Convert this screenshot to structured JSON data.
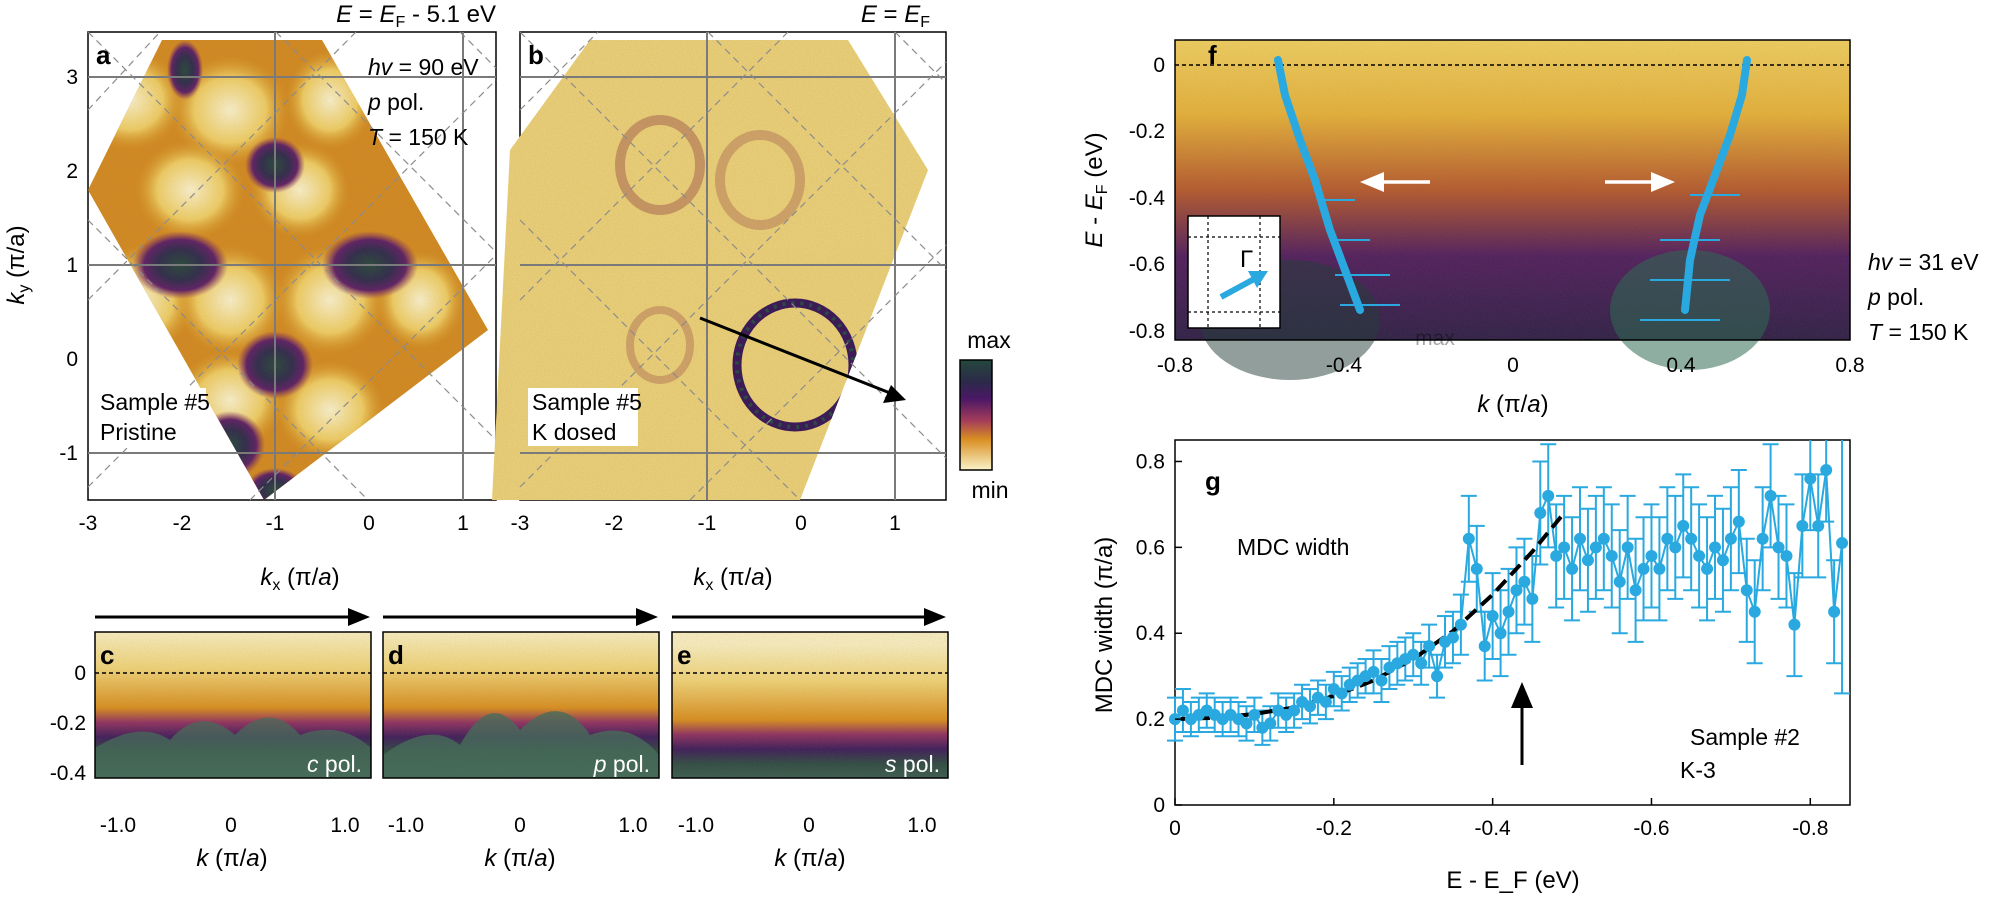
{
  "figure": {
    "panel_a": {
      "letter": "a",
      "top_label": "E = E_F - 5.1 eV",
      "top_label_parts": {
        "e": "E",
        "eq": " = ",
        "ef": "E",
        "ef_sub": "F",
        "rest": " - 5.1 eV"
      },
      "hv": "hv = 90 eV",
      "hv_parts": {
        "sym": "hv",
        "rest": " = 90 eV"
      },
      "pol": "p pol.",
      "pol_parts": {
        "sym": "p",
        "rest": " pol."
      },
      "temp": "T = 150 K",
      "temp_parts": {
        "sym": "T",
        "rest": " = 150 K"
      },
      "sample": "Sample #5",
      "state": "Pristine",
      "ylabel_parts": {
        "k": "k",
        "sub": "y",
        "rest": " (π/a)"
      },
      "xlabel_parts": {
        "k": "k",
        "sub": "x",
        "rest": " (π/",
        "a": "a",
        "end": ")"
      },
      "xticks": [
        "-3",
        "-2",
        "-1",
        "0",
        "1"
      ],
      "yticks": [
        "3",
        "2",
        "1",
        "0",
        "-1"
      ]
    },
    "panel_b": {
      "letter": "b",
      "top_label_parts": {
        "e": "E",
        "eq": " = ",
        "ef": "E",
        "ef_sub": "F"
      },
      "sample": "Sample #5",
      "state": "K dosed",
      "xlabel_parts": {
        "k": "k",
        "sub": "x",
        "rest": " (π/",
        "a": "a",
        "end": ")"
      },
      "xticks": [
        "-3",
        "-2",
        "-1",
        "0",
        "1"
      ]
    },
    "colorbar": {
      "max_label": "max",
      "min_label": "min"
    },
    "panels_cde": {
      "c": {
        "letter": "c",
        "pol_parts": {
          "sym": "c",
          "rest": " pol."
        }
      },
      "d": {
        "letter": "d",
        "pol_parts": {
          "sym": "p",
          "rest": " pol."
        }
      },
      "e": {
        "letter": "e",
        "pol_parts": {
          "sym": "s",
          "rest": " pol."
        }
      },
      "yticks": [
        "0",
        "-0.2",
        "-0.4"
      ],
      "xticks": [
        "-1.0",
        "0",
        "1.0"
      ],
      "xlabel_parts": {
        "k": "k",
        "rest": " (π/",
        "a": "a",
        "end": ")"
      }
    },
    "panel_f": {
      "letter": "f",
      "ylabel_parts": {
        "e": "E",
        "dash": " - ",
        "ef": "E",
        "ef_sub": "F",
        "rest": " (eV)"
      },
      "xlabel_parts": {
        "k": "k",
        "rest": " (π/",
        "a": "a",
        "end": ")"
      },
      "yticks": [
        "0",
        "-0.2",
        "-0.4",
        "-0.6",
        "-0.8"
      ],
      "xticks": [
        "-0.8",
        "-0.4",
        "0",
        "0.4",
        "0.8"
      ],
      "inset_label": "Γ",
      "faint_text": "max",
      "hv_parts": {
        "sym": "hv",
        "rest": " = 31 eV"
      },
      "pol_parts": {
        "sym": "p",
        "rest": " pol."
      },
      "temp_parts": {
        "sym": "T",
        "rest": " = 150 K"
      }
    },
    "panel_g": {
      "letter": "g",
      "annotation": "MDC width",
      "sample": "Sample #2",
      "dose": "K-3"
    },
    "colors": {
      "data_blue": "#29a9e0",
      "map_dark": "#24473c",
      "map_purple": "#4a1766",
      "map_orange": "#c9781a",
      "map_yellow": "#f7e9a4"
    }
  },
  "chart_data": {
    "type": "scatter",
    "title": "",
    "xlabel": "E - E_F (eV)",
    "ylabel": "MDC width (π/a)",
    "xlim": [
      0,
      -0.85
    ],
    "ylim": [
      0,
      0.85
    ],
    "xticks": [
      "0",
      "-0.2",
      "-0.4",
      "-0.6",
      "-0.8"
    ],
    "yticks": [
      "0",
      "0.2",
      "0.4",
      "0.6",
      "0.8"
    ],
    "grid": false,
    "series": [
      {
        "name": "MDC width",
        "x": [
          0,
          -0.01,
          -0.02,
          -0.03,
          -0.04,
          -0.05,
          -0.06,
          -0.07,
          -0.08,
          -0.09,
          -0.1,
          -0.11,
          -0.12,
          -0.13,
          -0.14,
          -0.15,
          -0.16,
          -0.17,
          -0.18,
          -0.19,
          -0.2,
          -0.21,
          -0.22,
          -0.23,
          -0.24,
          -0.25,
          -0.26,
          -0.27,
          -0.28,
          -0.29,
          -0.3,
          -0.31,
          -0.32,
          -0.33,
          -0.34,
          -0.35,
          -0.36,
          -0.37,
          -0.38,
          -0.39,
          -0.4,
          -0.41,
          -0.42,
          -0.43,
          -0.44,
          -0.45,
          -0.46,
          -0.47,
          -0.48,
          -0.49,
          -0.5,
          -0.51,
          -0.52,
          -0.53,
          -0.54,
          -0.55,
          -0.56,
          -0.57,
          -0.58,
          -0.59,
          -0.6,
          -0.61,
          -0.62,
          -0.63,
          -0.64,
          -0.65,
          -0.66,
          -0.67,
          -0.68,
          -0.69,
          -0.7,
          -0.71,
          -0.72,
          -0.73,
          -0.74,
          -0.75,
          -0.76,
          -0.77,
          -0.78,
          -0.79,
          -0.8,
          -0.81,
          -0.82,
          -0.83,
          -0.84
        ],
        "y": [
          0.2,
          0.22,
          0.2,
          0.21,
          0.22,
          0.21,
          0.2,
          0.21,
          0.2,
          0.19,
          0.21,
          0.18,
          0.19,
          0.22,
          0.21,
          0.22,
          0.24,
          0.23,
          0.25,
          0.24,
          0.27,
          0.26,
          0.28,
          0.29,
          0.3,
          0.31,
          0.29,
          0.32,
          0.33,
          0.34,
          0.35,
          0.33,
          0.37,
          0.3,
          0.38,
          0.39,
          0.42,
          0.62,
          0.55,
          0.37,
          0.44,
          0.4,
          0.45,
          0.5,
          0.52,
          0.48,
          0.68,
          0.72,
          0.58,
          0.6,
          0.55,
          0.62,
          0.57,
          0.6,
          0.62,
          0.58,
          0.52,
          0.6,
          0.5,
          0.55,
          0.58,
          0.55,
          0.62,
          0.6,
          0.65,
          0.62,
          0.58,
          0.55,
          0.6,
          0.57,
          0.62,
          0.66,
          0.5,
          0.45,
          0.62,
          0.72,
          0.6,
          0.58,
          0.42,
          0.65,
          0.76,
          0.65,
          0.78,
          0.45,
          0.61
        ],
        "yerr": [
          0.05,
          0.05,
          0.04,
          0.04,
          0.04,
          0.04,
          0.04,
          0.04,
          0.04,
          0.04,
          0.04,
          0.04,
          0.04,
          0.04,
          0.04,
          0.04,
          0.04,
          0.04,
          0.04,
          0.04,
          0.04,
          0.04,
          0.04,
          0.04,
          0.04,
          0.05,
          0.05,
          0.05,
          0.05,
          0.05,
          0.05,
          0.05,
          0.05,
          0.05,
          0.06,
          0.06,
          0.07,
          0.1,
          0.1,
          0.08,
          0.1,
          0.1,
          0.1,
          0.1,
          0.1,
          0.1,
          0.12,
          0.12,
          0.12,
          0.12,
          0.12,
          0.12,
          0.12,
          0.12,
          0.12,
          0.12,
          0.12,
          0.12,
          0.12,
          0.12,
          0.12,
          0.12,
          0.12,
          0.12,
          0.12,
          0.12,
          0.12,
          0.12,
          0.12,
          0.12,
          0.12,
          0.12,
          0.12,
          0.12,
          0.12,
          0.12,
          0.12,
          0.12,
          0.12,
          0.12,
          0.12,
          0.12,
          0.12,
          0.12,
          0.35
        ]
      },
      {
        "name": "fit",
        "x": [
          0,
          -0.05,
          -0.1,
          -0.15,
          -0.2,
          -0.25,
          -0.3,
          -0.35,
          -0.4,
          -0.45,
          -0.49
        ],
        "y": [
          0.2,
          0.203,
          0.212,
          0.227,
          0.254,
          0.29,
          0.34,
          0.405,
          0.49,
          0.59,
          0.68
        ]
      }
    ],
    "annotations": [
      "MDC width",
      "Sample #2",
      "K-3"
    ]
  }
}
